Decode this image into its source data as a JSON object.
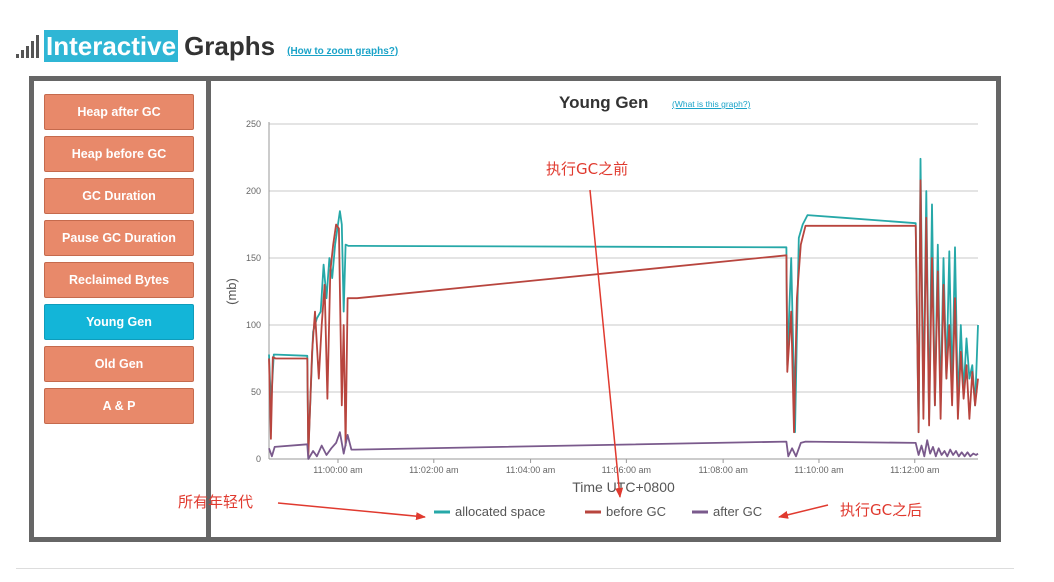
{
  "header": {
    "title_highlight": "Interactive",
    "title_rest": "Graphs",
    "zoom_link": "(How to zoom graphs?)"
  },
  "sidebar": {
    "items": [
      {
        "label": "Heap after GC",
        "active": false
      },
      {
        "label": "Heap before GC",
        "active": false
      },
      {
        "label": "GC Duration",
        "active": false
      },
      {
        "label": "Pause GC Duration",
        "active": false
      },
      {
        "label": "Reclaimed Bytes",
        "active": false
      },
      {
        "label": "Young Gen",
        "active": true
      },
      {
        "label": "Old Gen",
        "active": false
      },
      {
        "label": "A & P",
        "active": false
      }
    ]
  },
  "chart": {
    "what_link": "(What is this graph?)"
  },
  "annotations": {
    "before_gc": "执行GC之前",
    "all_young": "所有年轻代",
    "after_gc": "执行GC之后"
  },
  "colors": {
    "accent": "#2fb6d5",
    "menu": "#e8896a",
    "menu_active": "#13b5d8",
    "annotation": "#e03a2f"
  },
  "chart_data": {
    "type": "line",
    "title": "Young Gen",
    "xlabel": "Time UTC+0800",
    "ylabel": "(mb)",
    "ylim": [
      0,
      250
    ],
    "yticks": [
      0,
      50,
      100,
      150,
      200,
      250
    ],
    "xlim_minutes": [
      0,
      74
    ],
    "xticks": [
      {
        "label": "11:00:00 am",
        "x": 7.2
      },
      {
        "label": "11:02:00 am",
        "x": 17.2
      },
      {
        "label": "11:04:00 am",
        "x": 27.3
      },
      {
        "label": "11:06:00 am",
        "x": 37.3
      },
      {
        "label": "11:08:00 am",
        "x": 47.4
      },
      {
        "label": "11:10:00 am",
        "x": 57.4
      },
      {
        "label": "11:12:00 am",
        "x": 67.4
      }
    ],
    "grid": true,
    "legend_position": "bottom",
    "series": [
      {
        "name": "allocated space",
        "color": "#26a8a8",
        "x": [
          0,
          0.2,
          0.5,
          4.0,
          4.1,
          4.6,
          5.0,
          5.4,
          5.7,
          6.0,
          6.3,
          6.6,
          6.9,
          7.1,
          7.4,
          7.6,
          7.8,
          8.0,
          8.3,
          8.5,
          8.7,
          9.0,
          9.3,
          54.0,
          54.1,
          54.5,
          54.9,
          55.3,
          55.7,
          56.2,
          60.0,
          67.5,
          67.8,
          68.0,
          68.3,
          68.6,
          68.9,
          69.2,
          69.5,
          69.8,
          70.1,
          70.4,
          70.7,
          71.0,
          71.3,
          71.6,
          71.9,
          72.2,
          72.5,
          72.8,
          73.1,
          73.4,
          73.7,
          74.0
        ],
        "y": [
          78,
          40,
          78,
          77,
          5,
          95,
          105,
          110,
          145,
          120,
          150,
          135,
          160,
          170,
          185,
          175,
          110,
          160,
          159,
          159,
          159,
          159,
          159,
          158,
          70,
          150,
          20,
          165,
          175,
          182,
          180,
          176,
          20,
          224,
          40,
          200,
          30,
          190,
          40,
          160,
          40,
          150,
          60,
          155,
          50,
          158,
          40,
          100,
          50,
          90,
          60,
          70,
          40,
          100
        ]
      },
      {
        "name": "before GC",
        "color": "#b8453e",
        "x": [
          0,
          0.2,
          0.4,
          0.7,
          4.0,
          4.1,
          4.5,
          4.8,
          5.2,
          5.5,
          5.8,
          6.1,
          6.4,
          6.7,
          7.0,
          7.3,
          7.6,
          7.8,
          8.0,
          8.2,
          8.5,
          8.8,
          9.2,
          54.0,
          54.1,
          54.5,
          54.8,
          55.1,
          55.5,
          56.0,
          67.5,
          67.8,
          68.0,
          68.3,
          68.6,
          68.9,
          69.2,
          69.5,
          69.8,
          70.1,
          70.4,
          70.7,
          71.0,
          71.3,
          71.6,
          71.9,
          72.2,
          72.5,
          72.8,
          73.1,
          73.4,
          73.7,
          74.0
        ],
        "y": [
          75,
          15,
          76,
          75,
          75,
          2,
          80,
          110,
          60,
          100,
          130,
          45,
          140,
          160,
          175,
          172,
          40,
          100,
          10,
          120,
          120,
          120,
          120,
          152,
          65,
          110,
          20,
          120,
          160,
          174,
          174,
          20,
          208,
          30,
          180,
          25,
          150,
          40,
          140,
          30,
          130,
          60,
          100,
          40,
          120,
          30,
          80,
          45,
          70,
          30,
          65,
          40,
          60
        ]
      },
      {
        "name": "after GC",
        "color": "#7a5a8c",
        "x": [
          0,
          0.3,
          0.6,
          4.0,
          4.1,
          4.6,
          5.0,
          5.5,
          6.0,
          6.5,
          7.0,
          7.4,
          7.8,
          8.2,
          8.6,
          9.0,
          54.0,
          54.2,
          54.6,
          55.0,
          55.5,
          56.0,
          67.5,
          67.8,
          68.1,
          68.4,
          68.7,
          69.0,
          69.3,
          69.6,
          69.9,
          70.2,
          70.5,
          70.8,
          71.1,
          71.4,
          71.7,
          72.0,
          72.3,
          72.6,
          72.9,
          73.2,
          73.5,
          73.8,
          74.0
        ],
        "y": [
          8,
          2,
          9,
          11,
          0,
          6,
          2,
          10,
          3,
          8,
          12,
          20,
          4,
          18,
          7,
          7,
          13,
          2,
          8,
          2,
          12,
          13,
          12,
          3,
          10,
          2,
          14,
          4,
          9,
          2,
          8,
          3,
          6,
          2,
          7,
          3,
          6,
          2,
          5,
          2,
          5,
          2,
          4,
          3,
          4
        ]
      }
    ]
  }
}
